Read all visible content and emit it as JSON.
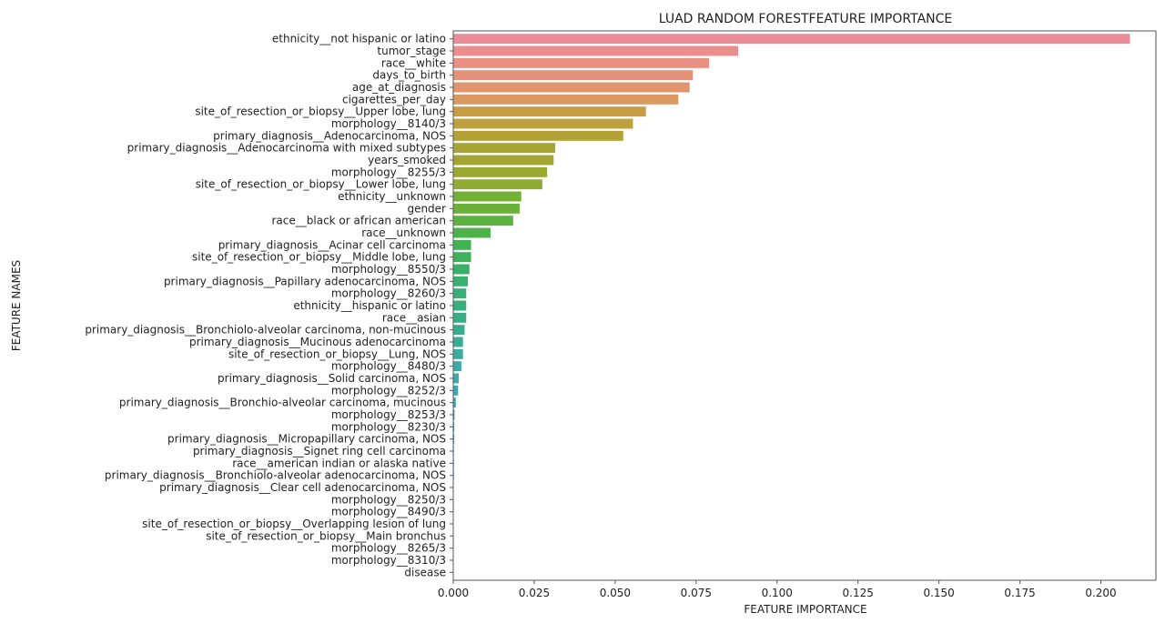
{
  "chart_data": {
    "type": "bar",
    "orientation": "horizontal",
    "title": "LUAD RANDOM FORESTFEATURE IMPORTANCE",
    "xlabel": "FEATURE IMPORTANCE",
    "ylabel": "FEATURE NAMES",
    "xlim": [
      0,
      0.217
    ],
    "xticks": [
      0.0,
      0.025,
      0.05,
      0.075,
      0.1,
      0.125,
      0.15,
      0.175,
      0.2
    ],
    "xtick_labels": [
      "0.000",
      "0.025",
      "0.050",
      "0.075",
      "0.100",
      "0.125",
      "0.150",
      "0.175",
      "0.200"
    ],
    "grid": false,
    "categories": [
      "ethnicity__not hispanic or latino",
      "tumor_stage",
      "race__white",
      "days_to_birth",
      "age_at_diagnosis",
      "cigarettes_per_day",
      "site_of_resection_or_biopsy__Upper lobe, lung",
      "morphology__8140/3",
      "primary_diagnosis__Adenocarcinoma, NOS",
      "primary_diagnosis__Adenocarcinoma with mixed subtypes",
      "years_smoked",
      "morphology__8255/3",
      "site_of_resection_or_biopsy__Lower lobe, lung",
      "ethnicity__unknown",
      "gender",
      "race__black or african american",
      "race__unknown",
      "primary_diagnosis__Acinar cell carcinoma",
      "site_of_resection_or_biopsy__Middle lobe, lung",
      "morphology__8550/3",
      "primary_diagnosis__Papillary adenocarcinoma, NOS",
      "morphology__8260/3",
      "ethnicity__hispanic or latino",
      "race__asian",
      "primary_diagnosis__Bronchiolo-alveolar carcinoma, non-mucinous",
      "primary_diagnosis__Mucinous adenocarcinoma",
      "site_of_resection_or_biopsy__Lung, NOS",
      "morphology__8480/3",
      "primary_diagnosis__Solid carcinoma, NOS",
      "morphology__8252/3",
      "primary_diagnosis__Bronchio-alveolar carcinoma, mucinous",
      "morphology__8253/3",
      "morphology__8230/3",
      "primary_diagnosis__Micropapillary carcinoma, NOS",
      "primary_diagnosis__Signet ring cell carcinoma",
      "race__american indian or alaska native",
      "primary_diagnosis__Bronchiolo-alveolar adenocarcinoma, NOS",
      "primary_diagnosis__Clear cell adenocarcinoma, NOS",
      "morphology__8250/3",
      "morphology__8490/3",
      "site_of_resection_or_biopsy__Overlapping lesion of lung",
      "site_of_resection_or_biopsy__Main bronchus",
      "morphology__8265/3",
      "morphology__8310/3",
      "disease"
    ],
    "values": [
      0.209,
      0.088,
      0.079,
      0.074,
      0.073,
      0.0695,
      0.0595,
      0.0555,
      0.0525,
      0.0315,
      0.031,
      0.029,
      0.0275,
      0.021,
      0.0205,
      0.0185,
      0.0115,
      0.0055,
      0.0055,
      0.005,
      0.0045,
      0.004,
      0.004,
      0.004,
      0.0035,
      0.003,
      0.003,
      0.0025,
      0.0017,
      0.0015,
      0.0008,
      0.0004,
      0.0003,
      0.0003,
      0.0002,
      0.0002,
      0.0002,
      0.0001,
      0.0001,
      0.0001,
      0.0001,
      0.0001,
      0.0,
      0.0,
      0.0
    ],
    "colors": [
      "#ea8d99",
      "#ea8e8e",
      "#ea9083",
      "#e6917a",
      "#df946c",
      "#d99962",
      "#c89c43",
      "#bea03e",
      "#b4a237",
      "#a9a534",
      "#a2a733",
      "#9aa932",
      "#90ab31",
      "#72af35",
      "#6ab13a",
      "#5cb33f",
      "#4cb249",
      "#41b355",
      "#3cb25d",
      "#39b267",
      "#37b16f",
      "#36b076",
      "#36af7e",
      "#37ae86",
      "#38ad8e",
      "#39ad95",
      "#3aac9c",
      "#3babaa",
      "#3caab0",
      "#3ca9b6",
      "#3ea6be",
      "#42a4c6",
      "#48a1ce",
      "#529dd5",
      "#5e99dc",
      "#6c93e3",
      "#7b8de9",
      "#8b86ee",
      "#9c7ff1",
      "#ad78f1",
      "#bc71ee",
      "#c86ce8",
      "#d368df",
      "#dc66d4",
      "#e467c6"
    ]
  }
}
